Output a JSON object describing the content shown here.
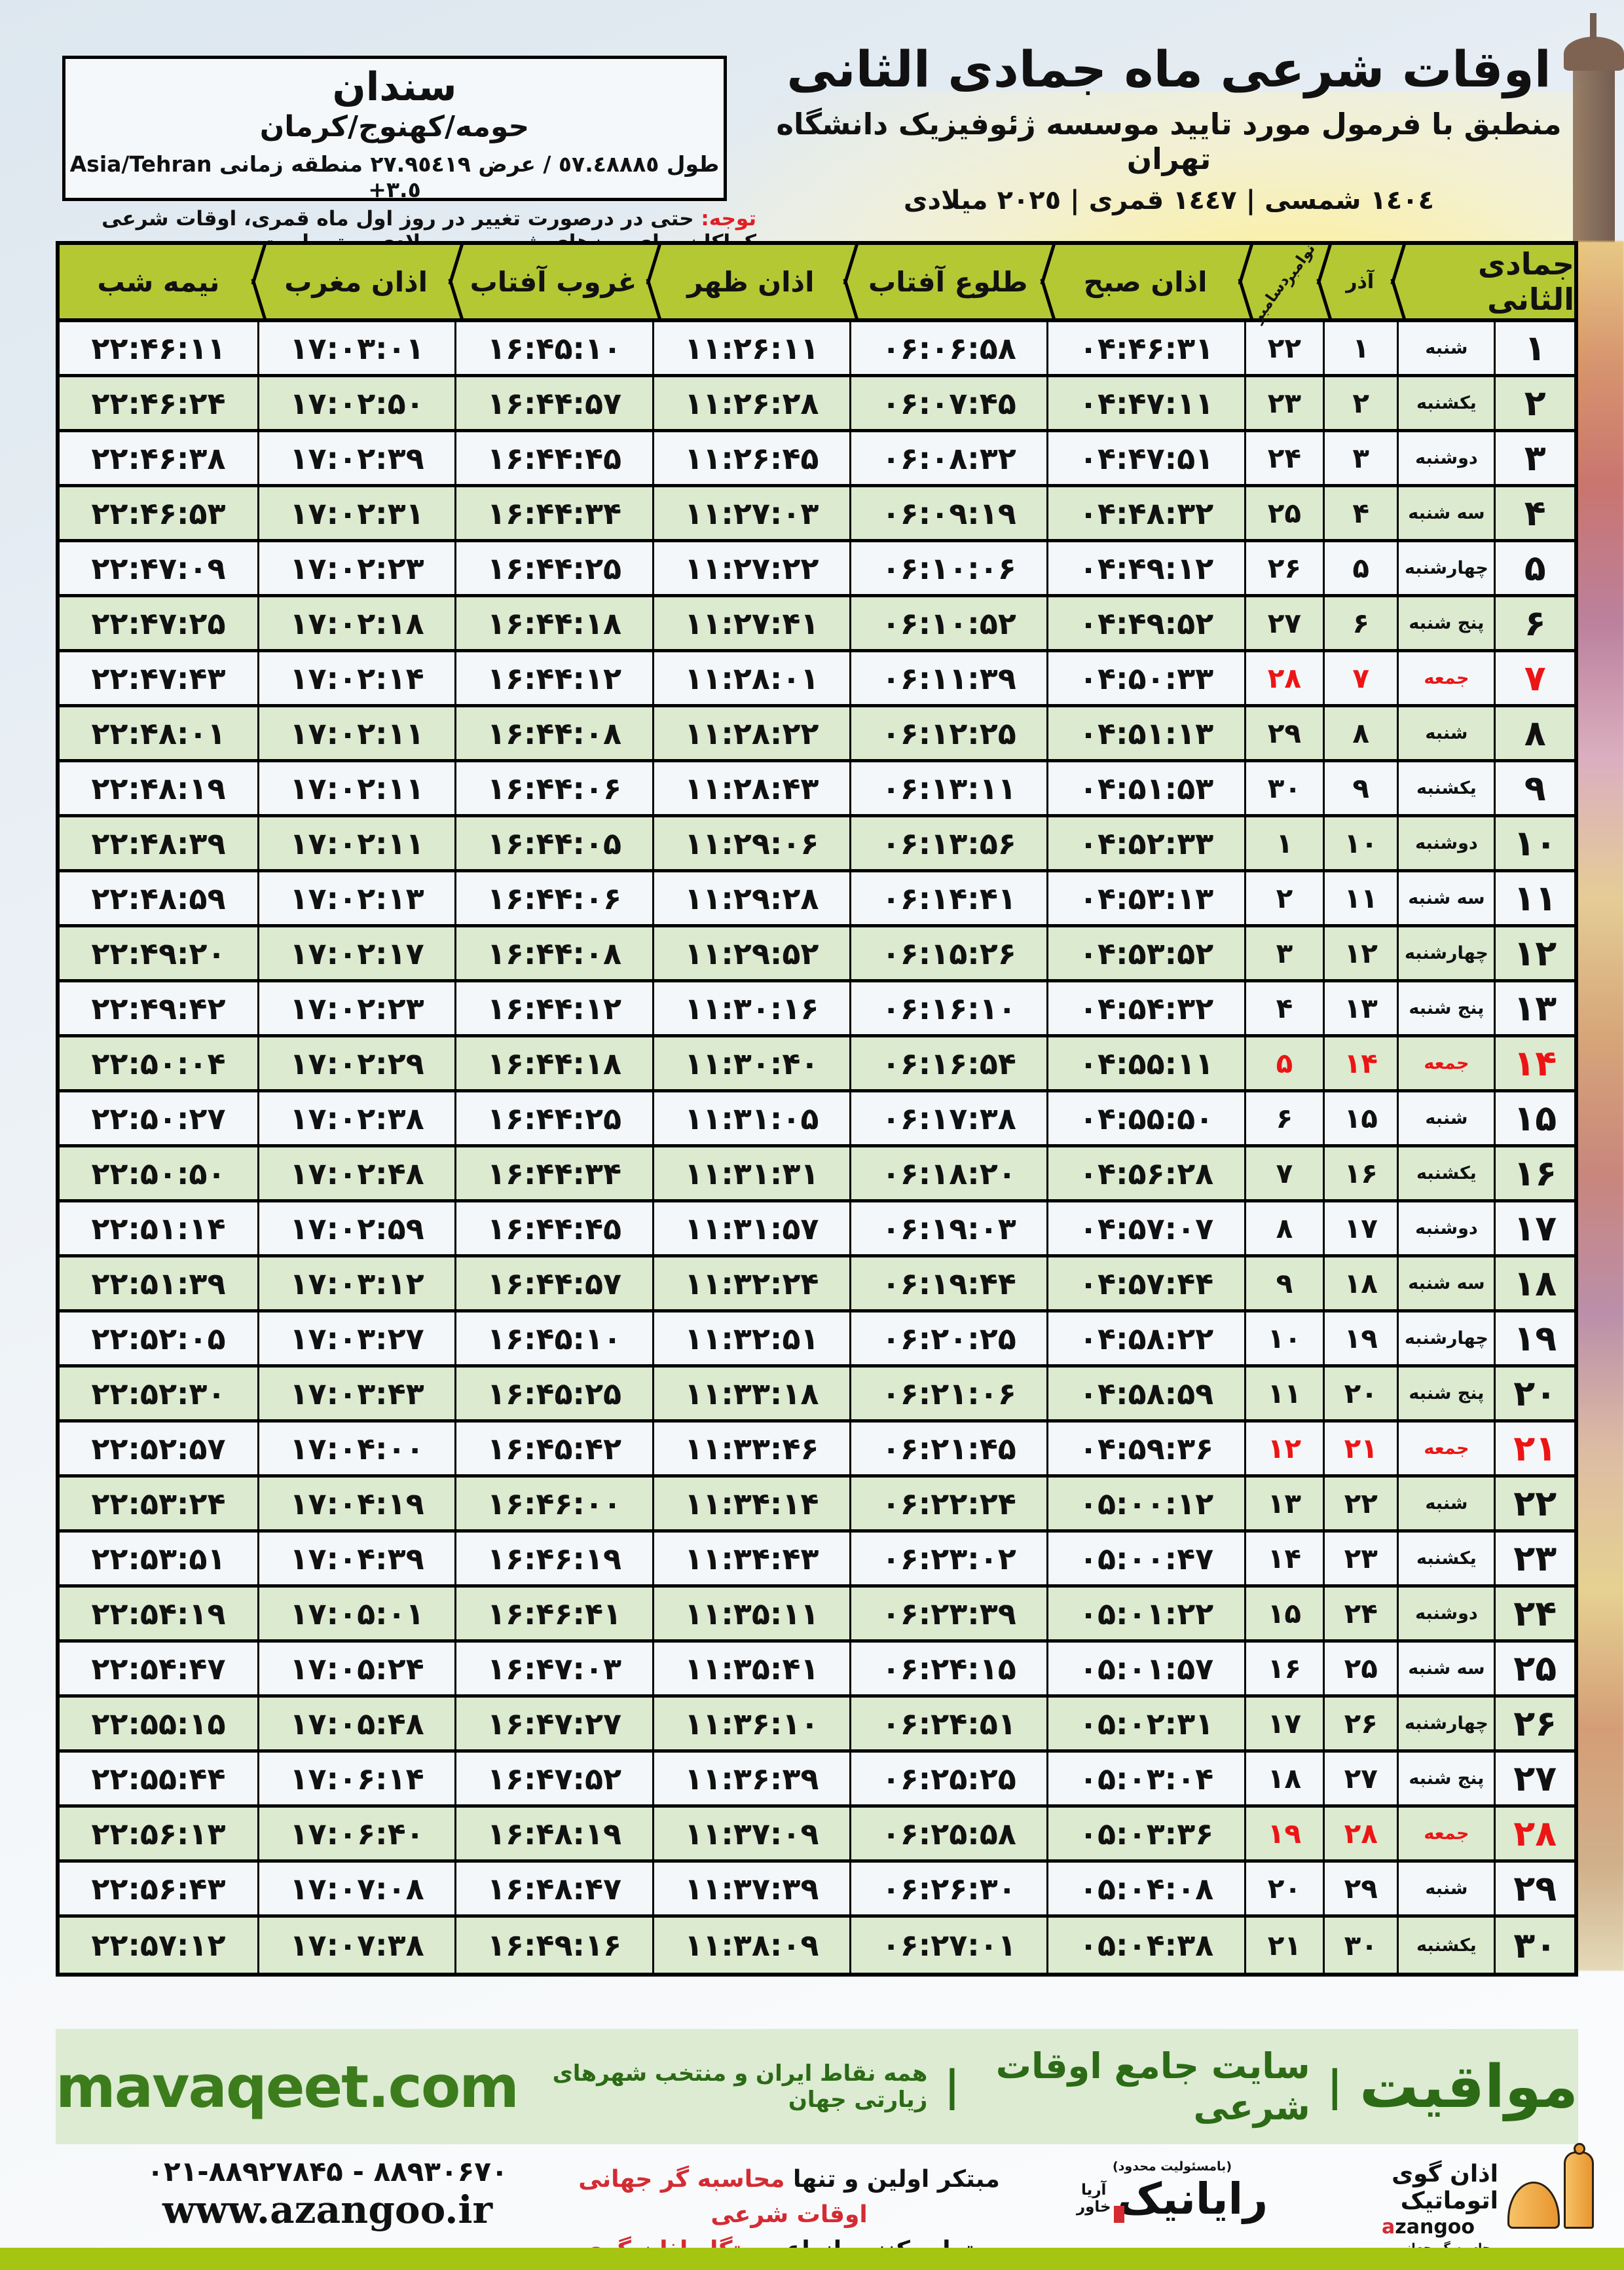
{
  "title_block": {
    "title": "اوقات شرعی ماه جمادی الثانی",
    "subtitle": "منطبق با فرمول مورد تایید موسسه ژئوفیزیک دانشگاه تهران",
    "dates": "١٤٠٤ شمسی | ١٤٤٧ قمری | ٢٠٢٥ میلادی"
  },
  "location_box": {
    "city": "سندان",
    "region": "حومه/کهنوج/کرمان",
    "coords_fa": "طول ٥٧.٤٨٨٨٥ / عرض ٢٧.٩٥٤١٩ منطقه زمانی",
    "coords_latin": "Asia/Tehran +٣.٥"
  },
  "notice": {
    "label": "توجه:",
    "text": " حتی در درصورت تغییر در روز اول ماه قمری، اوقات شرعی کماکان برای روزهای شمسی و میلادی معتبر است."
  },
  "table": {
    "headers": {
      "month": "جمادی الثانی",
      "azar": "آذر",
      "miladi_top": "نوامبر",
      "miladi_bottom": "دسامبر",
      "sobh": "اذان صبح",
      "tolu": "طلوع آفتاب",
      "zohr": "اذان ظهر",
      "ghorub": "غروب آفتاب",
      "maghreb": "اذان مغرب",
      "nimeshab": "نیمه شب"
    },
    "rows": [
      {
        "day": "۱",
        "weekday": "شنبه",
        "azar": "۱",
        "miladi": "۲۲",
        "sobh": "۰۴:۴۶:۳۱",
        "tolu": "۰۶:۰۶:۵۸",
        "zohr": "۱۱:۲۶:۱۱",
        "ghorub": "۱۶:۴۵:۱۰",
        "maghreb": "۱۷:۰۳:۰۱",
        "nimeshab": "۲۲:۴۶:۱۱",
        "friday": false
      },
      {
        "day": "۲",
        "weekday": "یکشنبه",
        "azar": "۲",
        "miladi": "۲۳",
        "sobh": "۰۴:۴۷:۱۱",
        "tolu": "۰۶:۰۷:۴۵",
        "zohr": "۱۱:۲۶:۲۸",
        "ghorub": "۱۶:۴۴:۵۷",
        "maghreb": "۱۷:۰۲:۵۰",
        "nimeshab": "۲۲:۴۶:۲۴",
        "friday": false
      },
      {
        "day": "۳",
        "weekday": "دوشنبه",
        "azar": "۳",
        "miladi": "۲۴",
        "sobh": "۰۴:۴۷:۵۱",
        "tolu": "۰۶:۰۸:۳۲",
        "zohr": "۱۱:۲۶:۴۵",
        "ghorub": "۱۶:۴۴:۴۵",
        "maghreb": "۱۷:۰۲:۳۹",
        "nimeshab": "۲۲:۴۶:۳۸",
        "friday": false
      },
      {
        "day": "۴",
        "weekday": "سه شنبه",
        "azar": "۴",
        "miladi": "۲۵",
        "sobh": "۰۴:۴۸:۳۲",
        "tolu": "۰۶:۰۹:۱۹",
        "zohr": "۱۱:۲۷:۰۳",
        "ghorub": "۱۶:۴۴:۳۴",
        "maghreb": "۱۷:۰۲:۳۱",
        "nimeshab": "۲۲:۴۶:۵۳",
        "friday": false
      },
      {
        "day": "۵",
        "weekday": "چهارشنبه",
        "azar": "۵",
        "miladi": "۲۶",
        "sobh": "۰۴:۴۹:۱۲",
        "tolu": "۰۶:۱۰:۰۶",
        "zohr": "۱۱:۲۷:۲۲",
        "ghorub": "۱۶:۴۴:۲۵",
        "maghreb": "۱۷:۰۲:۲۳",
        "nimeshab": "۲۲:۴۷:۰۹",
        "friday": false
      },
      {
        "day": "۶",
        "weekday": "پنج شنبه",
        "azar": "۶",
        "miladi": "۲۷",
        "sobh": "۰۴:۴۹:۵۲",
        "tolu": "۰۶:۱۰:۵۲",
        "zohr": "۱۱:۲۷:۴۱",
        "ghorub": "۱۶:۴۴:۱۸",
        "maghreb": "۱۷:۰۲:۱۸",
        "nimeshab": "۲۲:۴۷:۲۵",
        "friday": false
      },
      {
        "day": "۷",
        "weekday": "جمعه",
        "azar": "۷",
        "miladi": "۲۸",
        "sobh": "۰۴:۵۰:۳۳",
        "tolu": "۰۶:۱۱:۳۹",
        "zohr": "۱۱:۲۸:۰۱",
        "ghorub": "۱۶:۴۴:۱۲",
        "maghreb": "۱۷:۰۲:۱۴",
        "nimeshab": "۲۲:۴۷:۴۳",
        "friday": true
      },
      {
        "day": "۸",
        "weekday": "شنبه",
        "azar": "۸",
        "miladi": "۲۹",
        "sobh": "۰۴:۵۱:۱۳",
        "tolu": "۰۶:۱۲:۲۵",
        "zohr": "۱۱:۲۸:۲۲",
        "ghorub": "۱۶:۴۴:۰۸",
        "maghreb": "۱۷:۰۲:۱۱",
        "nimeshab": "۲۲:۴۸:۰۱",
        "friday": false
      },
      {
        "day": "۹",
        "weekday": "یکشنبه",
        "azar": "۹",
        "miladi": "۳۰",
        "sobh": "۰۴:۵۱:۵۳",
        "tolu": "۰۶:۱۳:۱۱",
        "zohr": "۱۱:۲۸:۴۳",
        "ghorub": "۱۶:۴۴:۰۶",
        "maghreb": "۱۷:۰۲:۱۱",
        "nimeshab": "۲۲:۴۸:۱۹",
        "friday": false
      },
      {
        "day": "۱۰",
        "weekday": "دوشنبه",
        "azar": "۱۰",
        "miladi": "۱",
        "sobh": "۰۴:۵۲:۳۳",
        "tolu": "۰۶:۱۳:۵۶",
        "zohr": "۱۱:۲۹:۰۶",
        "ghorub": "۱۶:۴۴:۰۵",
        "maghreb": "۱۷:۰۲:۱۱",
        "nimeshab": "۲۲:۴۸:۳۹",
        "friday": false
      },
      {
        "day": "۱۱",
        "weekday": "سه شنبه",
        "azar": "۱۱",
        "miladi": "۲",
        "sobh": "۰۴:۵۳:۱۳",
        "tolu": "۰۶:۱۴:۴۱",
        "zohr": "۱۱:۲۹:۲۸",
        "ghorub": "۱۶:۴۴:۰۶",
        "maghreb": "۱۷:۰۲:۱۳",
        "nimeshab": "۲۲:۴۸:۵۹",
        "friday": false
      },
      {
        "day": "۱۲",
        "weekday": "چهارشنبه",
        "azar": "۱۲",
        "miladi": "۳",
        "sobh": "۰۴:۵۳:۵۲",
        "tolu": "۰۶:۱۵:۲۶",
        "zohr": "۱۱:۲۹:۵۲",
        "ghorub": "۱۶:۴۴:۰۸",
        "maghreb": "۱۷:۰۲:۱۷",
        "nimeshab": "۲۲:۴۹:۲۰",
        "friday": false
      },
      {
        "day": "۱۳",
        "weekday": "پنج شنبه",
        "azar": "۱۳",
        "miladi": "۴",
        "sobh": "۰۴:۵۴:۳۲",
        "tolu": "۰۶:۱۶:۱۰",
        "zohr": "۱۱:۳۰:۱۶",
        "ghorub": "۱۶:۴۴:۱۲",
        "maghreb": "۱۷:۰۲:۲۳",
        "nimeshab": "۲۲:۴۹:۴۲",
        "friday": false
      },
      {
        "day": "۱۴",
        "weekday": "جمعه",
        "azar": "۱۴",
        "miladi": "۵",
        "sobh": "۰۴:۵۵:۱۱",
        "tolu": "۰۶:۱۶:۵۴",
        "zohr": "۱۱:۳۰:۴۰",
        "ghorub": "۱۶:۴۴:۱۸",
        "maghreb": "۱۷:۰۲:۲۹",
        "nimeshab": "۲۲:۵۰:۰۴",
        "friday": true
      },
      {
        "day": "۱۵",
        "weekday": "شنبه",
        "azar": "۱۵",
        "miladi": "۶",
        "sobh": "۰۴:۵۵:۵۰",
        "tolu": "۰۶:۱۷:۳۸",
        "zohr": "۱۱:۳۱:۰۵",
        "ghorub": "۱۶:۴۴:۲۵",
        "maghreb": "۱۷:۰۲:۳۸",
        "nimeshab": "۲۲:۵۰:۲۷",
        "friday": false
      },
      {
        "day": "۱۶",
        "weekday": "یکشنبه",
        "azar": "۱۶",
        "miladi": "۷",
        "sobh": "۰۴:۵۶:۲۸",
        "tolu": "۰۶:۱۸:۲۰",
        "zohr": "۱۱:۳۱:۳۱",
        "ghorub": "۱۶:۴۴:۳۴",
        "maghreb": "۱۷:۰۲:۴۸",
        "nimeshab": "۲۲:۵۰:۵۰",
        "friday": false
      },
      {
        "day": "۱۷",
        "weekday": "دوشنبه",
        "azar": "۱۷",
        "miladi": "۸",
        "sobh": "۰۴:۵۷:۰۷",
        "tolu": "۰۶:۱۹:۰۳",
        "zohr": "۱۱:۳۱:۵۷",
        "ghorub": "۱۶:۴۴:۴۵",
        "maghreb": "۱۷:۰۲:۵۹",
        "nimeshab": "۲۲:۵۱:۱۴",
        "friday": false
      },
      {
        "day": "۱۸",
        "weekday": "سه شنبه",
        "azar": "۱۸",
        "miladi": "۹",
        "sobh": "۰۴:۵۷:۴۴",
        "tolu": "۰۶:۱۹:۴۴",
        "zohr": "۱۱:۳۲:۲۴",
        "ghorub": "۱۶:۴۴:۵۷",
        "maghreb": "۱۷:۰۳:۱۲",
        "nimeshab": "۲۲:۵۱:۳۹",
        "friday": false
      },
      {
        "day": "۱۹",
        "weekday": "چهارشنبه",
        "azar": "۱۹",
        "miladi": "۱۰",
        "sobh": "۰۴:۵۸:۲۲",
        "tolu": "۰۶:۲۰:۲۵",
        "zohr": "۱۱:۳۲:۵۱",
        "ghorub": "۱۶:۴۵:۱۰",
        "maghreb": "۱۷:۰۳:۲۷",
        "nimeshab": "۲۲:۵۲:۰۵",
        "friday": false
      },
      {
        "day": "۲۰",
        "weekday": "پنج شنبه",
        "azar": "۲۰",
        "miladi": "۱۱",
        "sobh": "۰۴:۵۸:۵۹",
        "tolu": "۰۶:۲۱:۰۶",
        "zohr": "۱۱:۳۳:۱۸",
        "ghorub": "۱۶:۴۵:۲۵",
        "maghreb": "۱۷:۰۳:۴۳",
        "nimeshab": "۲۲:۵۲:۳۰",
        "friday": false
      },
      {
        "day": "۲۱",
        "weekday": "جمعه",
        "azar": "۲۱",
        "miladi": "۱۲",
        "sobh": "۰۴:۵۹:۳۶",
        "tolu": "۰۶:۲۱:۴۵",
        "zohr": "۱۱:۳۳:۴۶",
        "ghorub": "۱۶:۴۵:۴۲",
        "maghreb": "۱۷:۰۴:۰۰",
        "nimeshab": "۲۲:۵۲:۵۷",
        "friday": true
      },
      {
        "day": "۲۲",
        "weekday": "شنبه",
        "azar": "۲۲",
        "miladi": "۱۳",
        "sobh": "۰۵:۰۰:۱۲",
        "tolu": "۰۶:۲۲:۲۴",
        "zohr": "۱۱:۳۴:۱۴",
        "ghorub": "۱۶:۴۶:۰۰",
        "maghreb": "۱۷:۰۴:۱۹",
        "nimeshab": "۲۲:۵۳:۲۴",
        "friday": false
      },
      {
        "day": "۲۳",
        "weekday": "یکشنبه",
        "azar": "۲۳",
        "miladi": "۱۴",
        "sobh": "۰۵:۰۰:۴۷",
        "tolu": "۰۶:۲۳:۰۲",
        "zohr": "۱۱:۳۴:۴۳",
        "ghorub": "۱۶:۴۶:۱۹",
        "maghreb": "۱۷:۰۴:۳۹",
        "nimeshab": "۲۲:۵۳:۵۱",
        "friday": false
      },
      {
        "day": "۲۴",
        "weekday": "دوشنبه",
        "azar": "۲۴",
        "miladi": "۱۵",
        "sobh": "۰۵:۰۱:۲۲",
        "tolu": "۰۶:۲۳:۳۹",
        "zohr": "۱۱:۳۵:۱۱",
        "ghorub": "۱۶:۴۶:۴۱",
        "maghreb": "۱۷:۰۵:۰۱",
        "nimeshab": "۲۲:۵۴:۱۹",
        "friday": false
      },
      {
        "day": "۲۵",
        "weekday": "سه شنبه",
        "azar": "۲۵",
        "miladi": "۱۶",
        "sobh": "۰۵:۰۱:۵۷",
        "tolu": "۰۶:۲۴:۱۵",
        "zohr": "۱۱:۳۵:۴۱",
        "ghorub": "۱۶:۴۷:۰۳",
        "maghreb": "۱۷:۰۵:۲۴",
        "nimeshab": "۲۲:۵۴:۴۷",
        "friday": false
      },
      {
        "day": "۲۶",
        "weekday": "چهارشنبه",
        "azar": "۲۶",
        "miladi": "۱۷",
        "sobh": "۰۵:۰۲:۳۱",
        "tolu": "۰۶:۲۴:۵۱",
        "zohr": "۱۱:۳۶:۱۰",
        "ghorub": "۱۶:۴۷:۲۷",
        "maghreb": "۱۷:۰۵:۴۸",
        "nimeshab": "۲۲:۵۵:۱۵",
        "friday": false
      },
      {
        "day": "۲۷",
        "weekday": "پنج شنبه",
        "azar": "۲۷",
        "miladi": "۱۸",
        "sobh": "۰۵:۰۳:۰۴",
        "tolu": "۰۶:۲۵:۲۵",
        "zohr": "۱۱:۳۶:۳۹",
        "ghorub": "۱۶:۴۷:۵۲",
        "maghreb": "۱۷:۰۶:۱۴",
        "nimeshab": "۲۲:۵۵:۴۴",
        "friday": false
      },
      {
        "day": "۲۸",
        "weekday": "جمعه",
        "azar": "۲۸",
        "miladi": "۱۹",
        "sobh": "۰۵:۰۳:۳۶",
        "tolu": "۰۶:۲۵:۵۸",
        "zohr": "۱۱:۳۷:۰۹",
        "ghorub": "۱۶:۴۸:۱۹",
        "maghreb": "۱۷:۰۶:۴۰",
        "nimeshab": "۲۲:۵۶:۱۳",
        "friday": true
      },
      {
        "day": "۲۹",
        "weekday": "شنبه",
        "azar": "۲۹",
        "miladi": "۲۰",
        "sobh": "۰۵:۰۴:۰۸",
        "tolu": "۰۶:۲۶:۳۰",
        "zohr": "۱۱:۳۷:۳۹",
        "ghorub": "۱۶:۴۸:۴۷",
        "maghreb": "۱۷:۰۷:۰۸",
        "nimeshab": "۲۲:۵۶:۴۳",
        "friday": false
      },
      {
        "day": "۳۰",
        "weekday": "یکشنبه",
        "azar": "۳۰",
        "miladi": "۲۱",
        "sobh": "۰۵:۰۴:۳۸",
        "tolu": "۰۶:۲۷:۰۱",
        "zohr": "۱۱:۳۸:۰۹",
        "ghorub": "۱۶:۴۹:۱۶",
        "maghreb": "۱۷:۰۷:۳۸",
        "nimeshab": "۲۲:۵۷:۱۲",
        "friday": false
      }
    ]
  },
  "band": {
    "brand": "مواقیت",
    "separator": "|",
    "site_label": "سایت جامع اوقات شرعی",
    "coverage": "همه نقاط ایران و منتخب شهرهای زیارتی جهان",
    "domain": "mavaqeet.com"
  },
  "footer": {
    "phone": "۰۲۱-۸۸۹۲۷۸۴۵ - ۸۸۹۳۰۶۷۰",
    "website": "www.azangoo.ir",
    "slogan_line1_black": "مبتکر اولین و تنها ",
    "slogan_line1_red": "محاسبه گر جهانی اوقات شرعی",
    "slogan_line2_black": "و تولید کننده انواع ",
    "slogan_line2_red": "دستگاه اذان گوی تمام خودکار ماهواره ای",
    "rayanik_note": "(بامسئولیت محدود)",
    "rayanik_name": "رایانیک",
    "rayanik_side1": "آریا",
    "rayanik_side2": "خاور",
    "azangoo_fa": "اذان گوی اتوماتیک",
    "azangoo_latin_a": "a",
    "azangoo_latin_rest": "zangoo",
    "azangoo_tagline": "محاسبه گر جهانی اوقات شرعی"
  },
  "colors": {
    "header_green": "#b3c832",
    "row_green": "#dcead0",
    "row_white": "#f4f7f9",
    "friday_red": "#ec1515",
    "notice_red": "#e01f26",
    "band_bg": "#dcebd2",
    "brand_green": "#2c6a16",
    "lime_bar": "#a6c513",
    "azangoo_orange": "#e8952f"
  }
}
